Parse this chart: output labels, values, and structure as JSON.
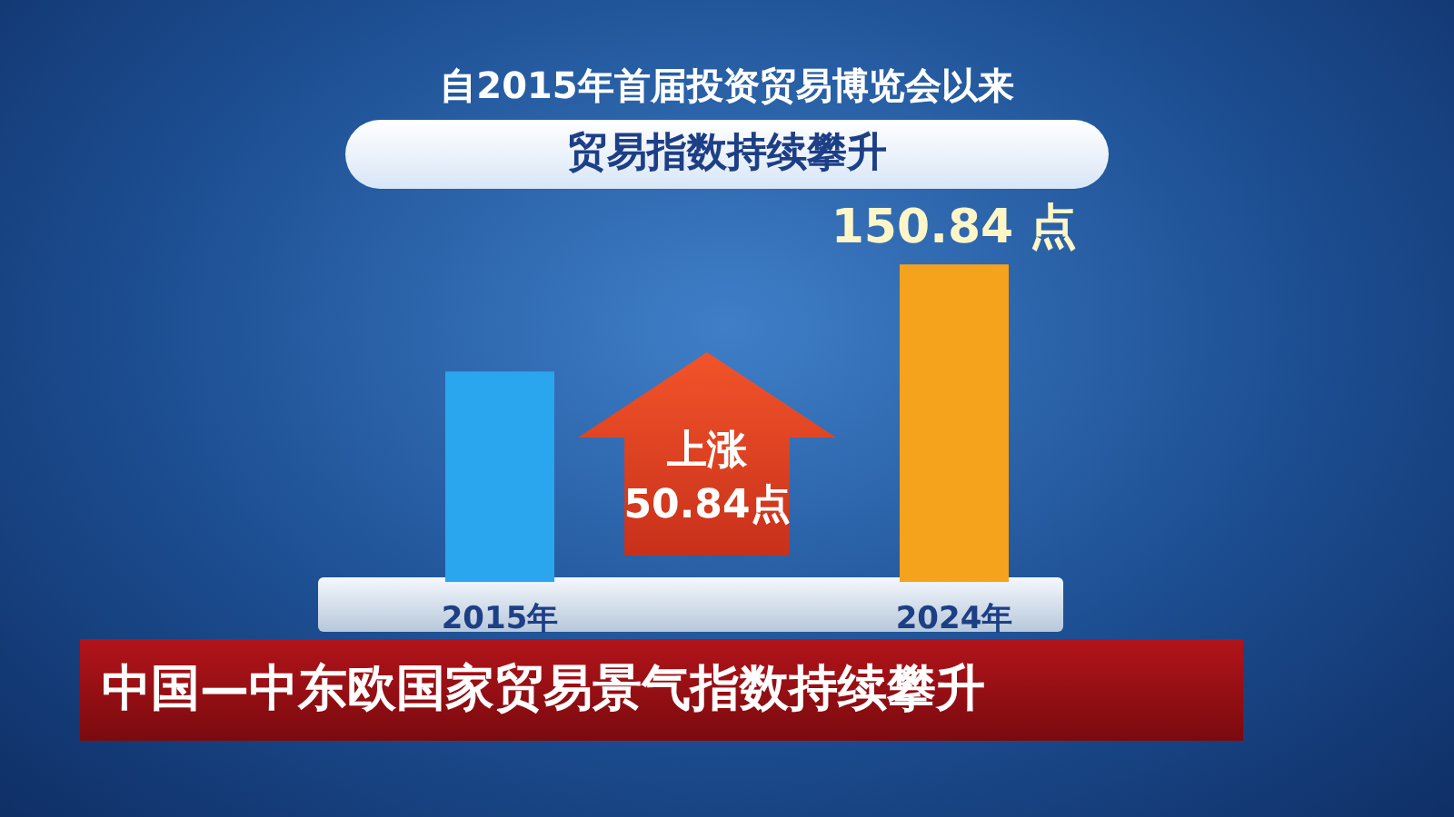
{
  "chart_data": {
    "type": "bar",
    "title": "自2015年首届投资贸易博览会以来",
    "subtitle": "贸易指数持续攀升",
    "categories": [
      "2015年",
      "2024年"
    ],
    "values": [
      100,
      150.84
    ],
    "colors": [
      "#2aa6ee",
      "#f5a21c"
    ],
    "value_labels": [
      null,
      "150.84 点"
    ],
    "tick_labels": "x",
    "annotations": [
      "上涨\n50.84点",
      "中国—中东欧国家贸易景气指数持续攀升"
    ]
  }
}
